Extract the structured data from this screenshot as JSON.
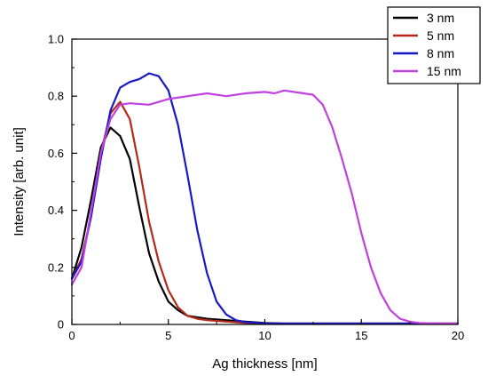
{
  "chart_data": {
    "type": "line",
    "xlabel": "Ag thickness [nm]",
    "ylabel": "Intensity [arb. unit]",
    "xlim": [
      0,
      20
    ],
    "ylim": [
      0,
      1.0
    ],
    "xticks": [
      0,
      5,
      10,
      15,
      20
    ],
    "yticks": [
      0,
      0.2,
      0.4,
      0.6,
      0.8,
      1.0
    ],
    "ytick_labels": [
      "0",
      "0.2",
      "0.4",
      "0.6",
      "0.8",
      "1.0"
    ],
    "grid": false,
    "legend_position": "top-right",
    "series": [
      {
        "name": "3 nm",
        "color": "#000000",
        "x": [
          0,
          0.5,
          1.0,
          1.5,
          2.0,
          2.5,
          3.0,
          3.5,
          4.0,
          4.5,
          5.0,
          5.5,
          6.0,
          6.5,
          7.0,
          8.0,
          9.0,
          10.0,
          11.0,
          12.0,
          13.0,
          14.0,
          15.0,
          16.0,
          17.0,
          18.0,
          19.0,
          20.0
        ],
        "y": [
          0.16,
          0.27,
          0.44,
          0.62,
          0.69,
          0.66,
          0.58,
          0.41,
          0.25,
          0.15,
          0.08,
          0.05,
          0.03,
          0.025,
          0.02,
          0.015,
          0.01,
          0.005,
          0.003,
          0.003,
          0.003,
          0.003,
          0.003,
          0.003,
          0.003,
          0.003,
          0.003,
          0.003
        ]
      },
      {
        "name": "5 nm",
        "color": "#b22a1a",
        "x": [
          0,
          0.5,
          1.0,
          1.5,
          2.0,
          2.5,
          3.0,
          3.5,
          4.0,
          4.5,
          5.0,
          5.5,
          6.0,
          6.5,
          7.0,
          8.0,
          9.0,
          10.0,
          11.0,
          12.0,
          13.0,
          14.0,
          15.0,
          16.0,
          17.0,
          18.0,
          19.0,
          20.0
        ],
        "y": [
          0.16,
          0.23,
          0.38,
          0.6,
          0.74,
          0.78,
          0.72,
          0.55,
          0.36,
          0.22,
          0.12,
          0.06,
          0.03,
          0.02,
          0.015,
          0.01,
          0.005,
          0.003,
          0.003,
          0.003,
          0.003,
          0.003,
          0.003,
          0.003,
          0.003,
          0.003,
          0.003,
          0.003
        ]
      },
      {
        "name": "8 nm",
        "color": "#1818c8",
        "x": [
          0,
          0.5,
          1.0,
          1.5,
          2.0,
          2.5,
          3.0,
          3.5,
          4.0,
          4.5,
          5.0,
          5.5,
          6.0,
          6.5,
          7.0,
          7.5,
          8.0,
          8.5,
          9.0,
          10.0,
          11.0,
          12.0,
          13.0,
          14.0,
          15.0,
          16.0,
          17.0,
          18.0,
          19.0,
          20.0
        ],
        "y": [
          0.16,
          0.22,
          0.38,
          0.58,
          0.75,
          0.83,
          0.85,
          0.86,
          0.88,
          0.87,
          0.82,
          0.7,
          0.52,
          0.33,
          0.18,
          0.08,
          0.035,
          0.015,
          0.008,
          0.004,
          0.003,
          0.003,
          0.003,
          0.003,
          0.003,
          0.003,
          0.003,
          0.003,
          0.003,
          0.003
        ]
      },
      {
        "name": "15 nm",
        "color": "#c040e0",
        "x": [
          0,
          0.5,
          1.0,
          1.5,
          2.0,
          2.5,
          3.0,
          4.0,
          5.0,
          6.0,
          7.0,
          8.0,
          9.0,
          10.0,
          10.5,
          11.0,
          12.0,
          12.5,
          13.0,
          13.5,
          14.0,
          14.5,
          15.0,
          15.5,
          16.0,
          16.5,
          17.0,
          17.5,
          18.0,
          19.0,
          20.0
        ],
        "y": [
          0.14,
          0.2,
          0.4,
          0.6,
          0.72,
          0.77,
          0.775,
          0.77,
          0.79,
          0.8,
          0.81,
          0.8,
          0.81,
          0.815,
          0.81,
          0.82,
          0.81,
          0.805,
          0.77,
          0.69,
          0.58,
          0.46,
          0.32,
          0.2,
          0.11,
          0.05,
          0.02,
          0.01,
          0.005,
          0.003,
          0.003
        ]
      }
    ]
  }
}
